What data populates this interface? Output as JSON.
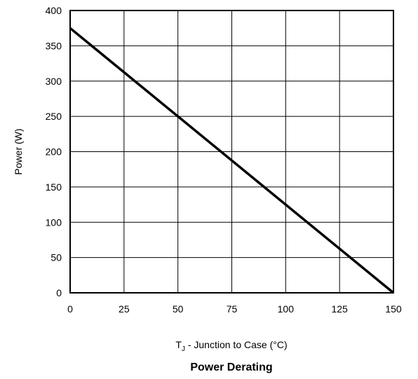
{
  "chart_data": {
    "type": "line",
    "title": "Power Derating",
    "xlabel": {
      "main": "T",
      "subscript": "J",
      "rest": " - Junction to Case (°C)"
    },
    "ylabel": "Power (W)",
    "xlim": [
      0,
      150
    ],
    "ylim": [
      0,
      400
    ],
    "x_ticks": [
      0,
      25,
      50,
      75,
      100,
      125,
      150
    ],
    "y_ticks": [
      0,
      50,
      100,
      150,
      200,
      250,
      300,
      350,
      400
    ],
    "grid": true,
    "series": [
      {
        "x": [
          0,
          150
        ],
        "y": [
          375,
          0
        ]
      }
    ],
    "colors": {
      "line": "#000000",
      "grid": "#000000",
      "frame": "#000000"
    }
  }
}
